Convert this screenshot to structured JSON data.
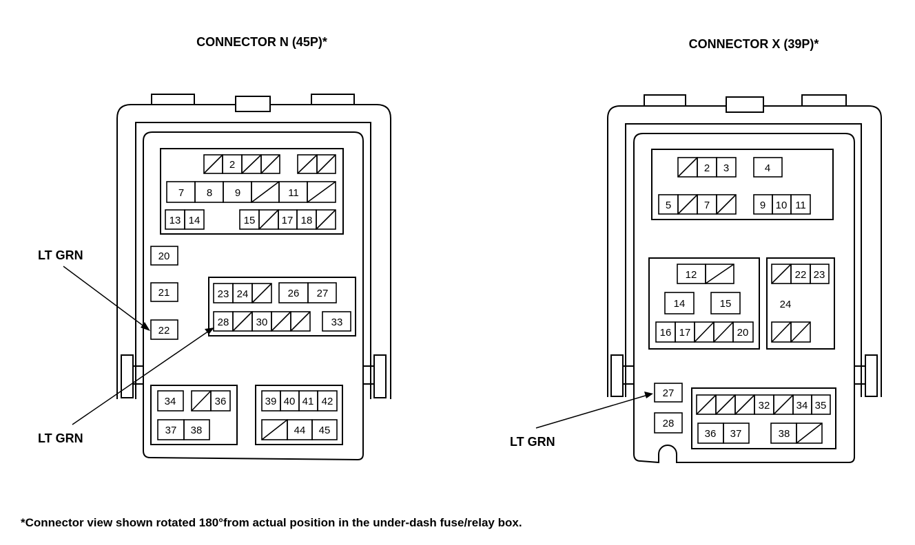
{
  "connector_n": {
    "title": "CONNECTOR N (45P)*",
    "wire_labels": [
      "LT GRN",
      "LT GRN"
    ],
    "terminals": [
      {
        "label": ""
      },
      {
        "label": "2"
      },
      {
        "label": ""
      },
      {
        "label": ""
      },
      {
        "label": ""
      },
      {
        "label": ""
      },
      {
        "label": "7"
      },
      {
        "label": "8"
      },
      {
        "label": "9"
      },
      {
        "label": ""
      },
      {
        "label": "11"
      },
      {
        "label": ""
      },
      {
        "label": "13"
      },
      {
        "label": "14"
      },
      {
        "label": "15"
      },
      {
        "label": ""
      },
      {
        "label": "17"
      },
      {
        "label": "18"
      },
      {
        "label": ""
      },
      {
        "label": "20"
      },
      {
        "label": "21"
      },
      {
        "label": "22"
      },
      {
        "label": "23"
      },
      {
        "label": "24"
      },
      {
        "label": ""
      },
      {
        "label": "26"
      },
      {
        "label": "27"
      },
      {
        "label": "28"
      },
      {
        "label": ""
      },
      {
        "label": "30"
      },
      {
        "label": ""
      },
      {
        "label": ""
      },
      {
        "label": "33"
      },
      {
        "label": "34"
      },
      {
        "label": ""
      },
      {
        "label": "36"
      },
      {
        "label": "37"
      },
      {
        "label": "38"
      },
      {
        "label": "39"
      },
      {
        "label": "40"
      },
      {
        "label": "41"
      },
      {
        "label": "42"
      },
      {
        "label": ""
      },
      {
        "label": "44"
      },
      {
        "label": "45"
      }
    ]
  },
  "connector_x": {
    "title": "CONNECTOR X (39P)*",
    "wire_labels": [
      "LT GRN"
    ],
    "terminals": [
      {
        "label": ""
      },
      {
        "label": "2"
      },
      {
        "label": "3"
      },
      {
        "label": "4"
      },
      {
        "label": "5"
      },
      {
        "label": ""
      },
      {
        "label": "7"
      },
      {
        "label": ""
      },
      {
        "label": "9"
      },
      {
        "label": "10"
      },
      {
        "label": "11"
      },
      {
        "label": "12"
      },
      {
        "label": ""
      },
      {
        "label": "14"
      },
      {
        "label": "15"
      },
      {
        "label": "16"
      },
      {
        "label": "17"
      },
      {
        "label": ""
      },
      {
        "label": ""
      },
      {
        "label": "20"
      },
      {
        "label": ""
      },
      {
        "label": "22"
      },
      {
        "label": "23"
      },
      {
        "label": "24"
      },
      {
        "label": ""
      },
      {
        "label": ""
      },
      {
        "label": "27"
      },
      {
        "label": "28"
      },
      {
        "label": ""
      },
      {
        "label": ""
      },
      {
        "label": ""
      },
      {
        "label": "32"
      },
      {
        "label": ""
      },
      {
        "label": "34"
      },
      {
        "label": "35"
      },
      {
        "label": "36"
      },
      {
        "label": "37"
      },
      {
        "label": "38"
      },
      {
        "label": ""
      }
    ]
  },
  "footnote": "*Connector view shown rotated 180°from actual position in the under-dash fuse/relay box."
}
